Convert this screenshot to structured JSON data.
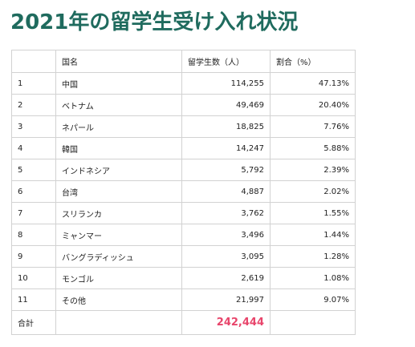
{
  "title": "2021年の留学生受け入れ状況",
  "table": {
    "headers": {
      "rank": "",
      "country": "国名",
      "count": "留学生数（人）",
      "share": "割合（%）"
    },
    "rows": [
      {
        "rank": "1",
        "country": "中国",
        "count": "114,255",
        "share": "47.13%"
      },
      {
        "rank": "2",
        "country": "ベトナム",
        "count": "49,469",
        "share": "20.40%"
      },
      {
        "rank": "3",
        "country": "ネパール",
        "count": "18,825",
        "share": "7.76%"
      },
      {
        "rank": "4",
        "country": "韓国",
        "count": "14,247",
        "share": "5.88%"
      },
      {
        "rank": "5",
        "country": "インドネシア",
        "count": "5,792",
        "share": "2.39%"
      },
      {
        "rank": "6",
        "country": "台湾",
        "count": "4,887",
        "share": "2.02%"
      },
      {
        "rank": "7",
        "country": "スリランカ",
        "count": "3,762",
        "share": "1.55%"
      },
      {
        "rank": "8",
        "country": "ミャンマー",
        "count": "3,496",
        "share": "1.44%"
      },
      {
        "rank": "9",
        "country": "バングラディッシュ",
        "count": "3,095",
        "share": "1.28%"
      },
      {
        "rank": "10",
        "country": "モンゴル",
        "count": "2,619",
        "share": "1.08%"
      },
      {
        "rank": "11",
        "country": "その他",
        "count": "21,997",
        "share": "9.07%"
      }
    ],
    "total": {
      "label": "合計",
      "country": "",
      "count": "242,444",
      "share": ""
    }
  },
  "colors": {
    "title": "#1f6b5e",
    "total_highlight": "#e8456b",
    "border": "#d2d2d2"
  }
}
